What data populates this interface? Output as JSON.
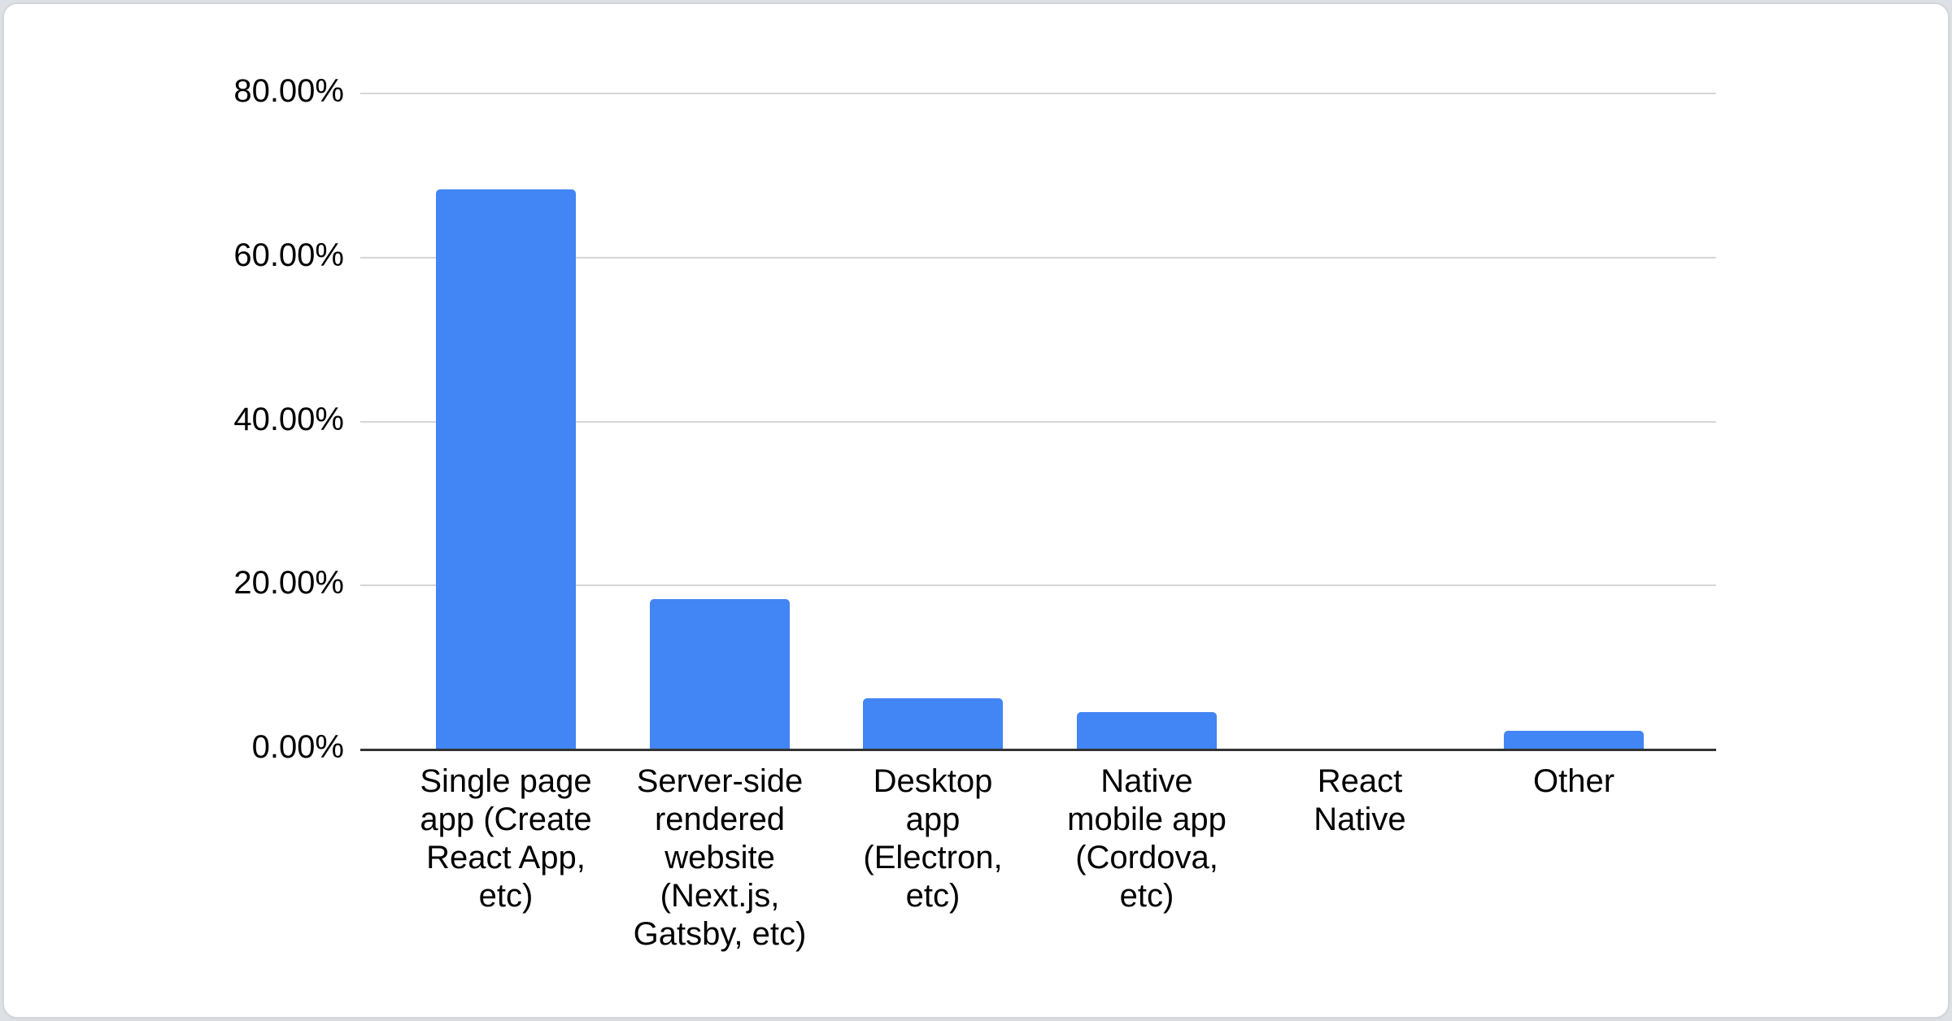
{
  "page": {
    "background_color": "#dde0e4",
    "card_background": "#ffffff",
    "card_border_color": "#d3d6da"
  },
  "chart_data": {
    "type": "bar",
    "title": "",
    "xlabel": "",
    "ylabel": "",
    "unit": "%",
    "categories": [
      "Single page app (Create React App, etc)",
      "Server-side rendered website (Next.js, Gatsby, etc)",
      "Desktop app (Electron, etc)",
      "Native mobile app (Cordova, etc)",
      "React Native",
      "Other"
    ],
    "category_label_lines": [
      [
        "Single page",
        "app (Create",
        "React App,",
        "etc)"
      ],
      [
        "Server-side",
        "rendered",
        "website",
        "(Next.js,",
        "Gatsby, etc)"
      ],
      [
        "Desktop",
        "app",
        "(Electron,",
        "etc)"
      ],
      [
        "Native",
        "mobile app",
        "(Cordova,",
        "etc)"
      ],
      [
        "React",
        "Native"
      ],
      [
        "Other"
      ]
    ],
    "category_slugs": [
      "single-page-app",
      "server-side-rendered-website",
      "desktop-app",
      "native-mobile-app",
      "react-native",
      "other"
    ],
    "values": [
      68.3,
      18.3,
      6.2,
      4.6,
      0,
      2.3
    ],
    "ylim": [
      0,
      80
    ],
    "yticks": [
      {
        "value": 80,
        "label": "80.00%"
      },
      {
        "value": 60,
        "label": "60.00%"
      },
      {
        "value": 40,
        "label": "40.00%"
      },
      {
        "value": 20,
        "label": "20.00%"
      },
      {
        "value": 0,
        "label": "0.00%"
      }
    ],
    "grid": true,
    "legend": "none",
    "colors": {
      "bar": "#4285f4",
      "axis_line": "#333333",
      "gridline": "#d6d6d6",
      "label_text": "#000000"
    }
  }
}
